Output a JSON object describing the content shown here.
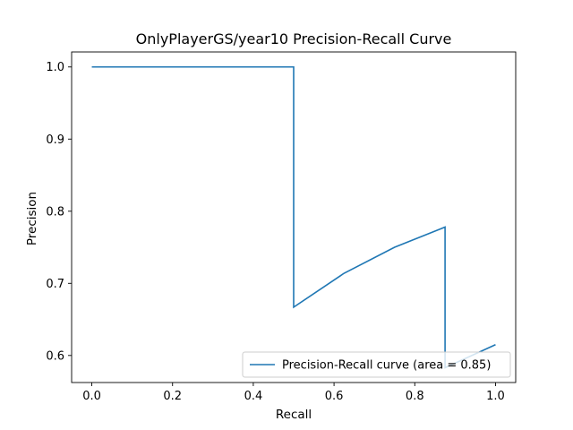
{
  "chart_data": {
    "type": "line",
    "title": "OnlyPlayerGS/year10 Precision-Recall Curve",
    "xlabel": "Recall",
    "ylabel": "Precision",
    "xlim": [
      -0.05,
      1.05
    ],
    "ylim": [
      0.5625,
      1.0208
    ],
    "x_ticks": [
      0.0,
      0.2,
      0.4,
      0.6,
      0.8,
      1.0
    ],
    "x_tick_labels": [
      "0.0",
      "0.2",
      "0.4",
      "0.6",
      "0.8",
      "1.0"
    ],
    "y_ticks": [
      0.6,
      0.7,
      0.8,
      0.9,
      1.0
    ],
    "y_tick_labels": [
      "0.6",
      "0.7",
      "0.8",
      "0.9",
      "1.0"
    ],
    "grid": false,
    "legend_position": "lower right",
    "series": [
      {
        "name": "Precision-Recall curve (area = 0.85)",
        "color": "#1f77b4",
        "x": [
          0.0,
          0.5,
          0.5,
          0.625,
          0.75,
          0.875,
          0.875,
          1.0
        ],
        "y": [
          1.0,
          1.0,
          0.667,
          0.714,
          0.75,
          0.778,
          0.583,
          0.615
        ]
      }
    ]
  }
}
